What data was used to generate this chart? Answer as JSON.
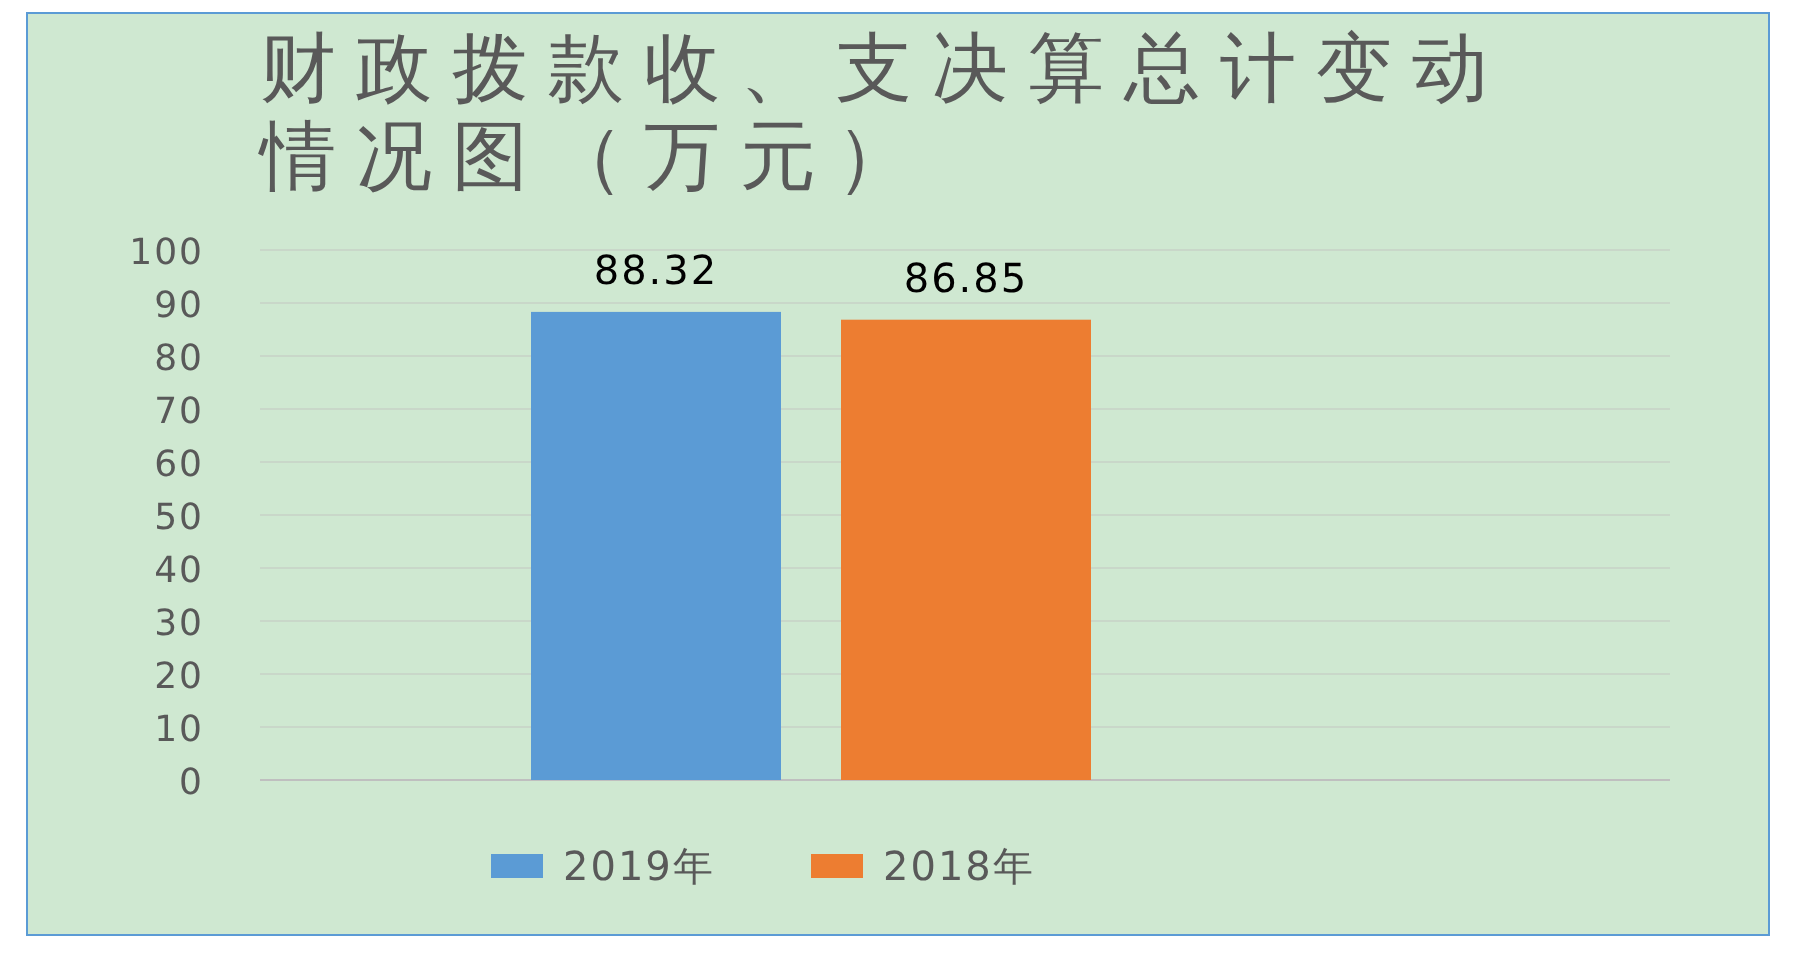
{
  "chart_data": {
    "type": "bar",
    "title": "财政拨款收、支决算总计变动情况图（万元）",
    "categories": [
      null
    ],
    "series": [
      {
        "name": "2019年",
        "color": "#5b9bd5",
        "values": [
          88.32
        ]
      },
      {
        "name": "2018年",
        "color": "#ed7d31",
        "values": [
          86.85
        ]
      }
    ],
    "ylim": [
      0,
      100
    ],
    "yticks": [
      0,
      10,
      20,
      30,
      40,
      50,
      60,
      70,
      80,
      90,
      100
    ],
    "grid": "y",
    "legend": "bottom",
    "data_labels": true
  }
}
